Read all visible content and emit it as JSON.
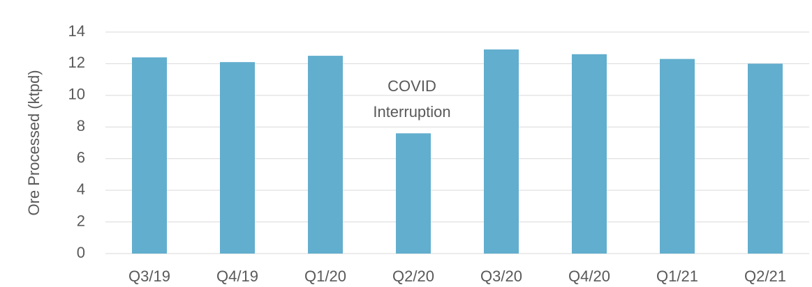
{
  "chart_data": {
    "type": "bar",
    "ylabel": "Ore Processed (ktpd)",
    "categories": [
      "Q3/19",
      "Q4/19",
      "Q1/20",
      "Q2/20",
      "Q3/20",
      "Q4/20",
      "Q1/21",
      "Q2/21"
    ],
    "values": [
      12.4,
      12.1,
      12.5,
      7.6,
      12.9,
      12.6,
      12.3,
      12.0
    ],
    "color": "#62aece",
    "ylim": [
      0,
      14
    ],
    "yticks": [
      0,
      2,
      4,
      6,
      8,
      10,
      12,
      14
    ],
    "grid": true,
    "annotation": [
      "COVID",
      "Interruption"
    ]
  }
}
